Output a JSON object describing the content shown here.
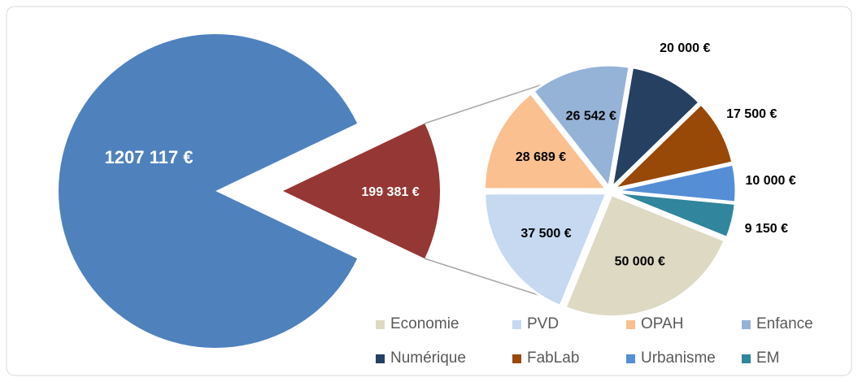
{
  "chart_data": {
    "type": "pie-of-pie",
    "values": [
      1207117,
      199381
    ],
    "value_labels": [
      "1207 117 €",
      "199 381 €"
    ],
    "colors": [
      "#4f81bd",
      "#953735"
    ],
    "sub": {
      "categories": [
        "Economie",
        "PVD",
        "OPAH",
        "Enfance",
        "Numérique",
        "FabLab",
        "Urbanisme",
        "EM"
      ],
      "values": [
        50000,
        37500,
        28689,
        26542,
        20000,
        17500,
        10000,
        9150
      ],
      "value_labels": [
        "50 000 €",
        "37 500 €",
        "28 689 €",
        "26 542 €",
        "20 000 €",
        "17 500 €",
        "10 000 €",
        "9 150 €"
      ],
      "colors": [
        "#ddd9c3",
        "#c6d9f1",
        "#fac090",
        "#95b3d7",
        "#254061",
        "#984807",
        "#558ed5",
        "#31859c"
      ]
    },
    "legend": "bottom-right"
  }
}
